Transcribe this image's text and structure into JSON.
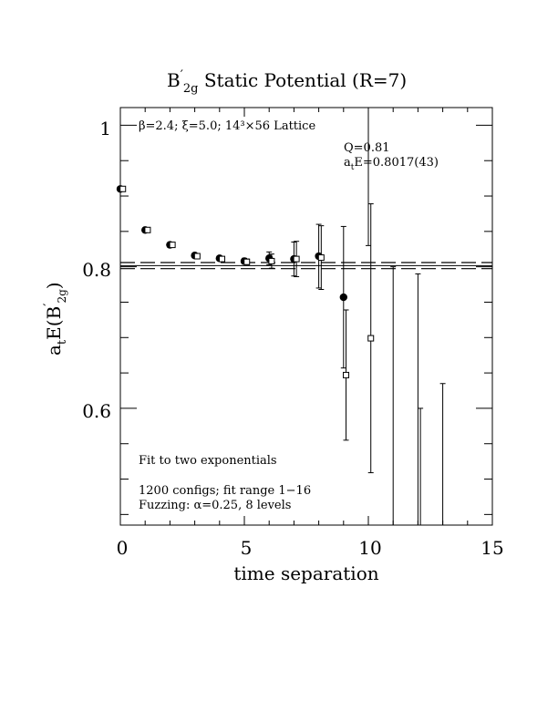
{
  "chart_data": {
    "type": "scatter",
    "title_main": "B",
    "title_prime": "′",
    "title_sub": "2g",
    "title_rest": " Static Potential (R=7)",
    "xlabel": "time separation",
    "ylabel_main": "a",
    "ylabel_sub": "t",
    "ylabel_mid": "E(B",
    "ylabel_prime": "′",
    "ylabel_sub2": "2g",
    "ylabel_end": ")",
    "xlim": [
      0,
      15
    ],
    "ylim": [
      0.435,
      1.025
    ],
    "xticks": [
      0,
      5,
      10,
      15
    ],
    "xtick_labels": [
      "0",
      "5",
      "10",
      "15"
    ],
    "yticks": [
      0.6,
      0.8,
      1.0
    ],
    "ytick_labels": [
      "0.6",
      "0.8",
      "1"
    ],
    "annotations": {
      "lattice_beta": "β=2.4;",
      "lattice_xi": "ξ=5.0;",
      "lattice_size": "14³×56 Lattice",
      "q_value": "Q=0.81",
      "energy_a": "a",
      "energy_t": "t",
      "energy_rest": "E=0.8017(43)",
      "fit_label": "Fit to two exponentials",
      "configs": "1200 configs; fit range 1−16",
      "fuzzing": "Fuzzing: α=0.25, 8 levels"
    },
    "fit": {
      "value": 0.8017,
      "error": 0.0043
    },
    "series": [
      {
        "marker": "filled-circle",
        "points": [
          {
            "x": 0,
            "y": 0.91,
            "err": 0.002
          },
          {
            "x": 1,
            "y": 0.852,
            "err": 0.002
          },
          {
            "x": 2,
            "y": 0.831,
            "err": 0.002
          },
          {
            "x": 3,
            "y": 0.816,
            "err": 0.003
          },
          {
            "x": 4,
            "y": 0.812,
            "err": 0.003
          },
          {
            "x": 5,
            "y": 0.808,
            "err": 0.004
          },
          {
            "x": 6,
            "y": 0.812,
            "err": 0.009
          },
          {
            "x": 7,
            "y": 0.811,
            "err": 0.024
          },
          {
            "x": 8,
            "y": 0.815,
            "err": 0.045
          },
          {
            "x": 9,
            "y": 0.757,
            "err": 0.1
          }
        ]
      },
      {
        "marker": "open-square",
        "points": [
          {
            "x": 0.1,
            "y": 0.91,
            "err": 0.002
          },
          {
            "x": 1.1,
            "y": 0.852,
            "err": 0.002
          },
          {
            "x": 2.1,
            "y": 0.831,
            "err": 0.002
          },
          {
            "x": 3.1,
            "y": 0.815,
            "err": 0.003
          },
          {
            "x": 4.1,
            "y": 0.811,
            "err": 0.003
          },
          {
            "x": 5.1,
            "y": 0.807,
            "err": 0.004
          },
          {
            "x": 6.1,
            "y": 0.808,
            "err": 0.01
          },
          {
            "x": 7.1,
            "y": 0.811,
            "err": 0.025
          },
          {
            "x": 8.1,
            "y": 0.813,
            "err": 0.045
          },
          {
            "x": 9.1,
            "y": 0.647,
            "err": 0.092
          },
          {
            "x": 10.1,
            "y": 0.699,
            "err": 0.19
          }
        ]
      },
      {
        "marker": "none",
        "points": [
          {
            "x": 10.0,
            "y": 1.02,
            "err": 0.19
          },
          {
            "x": 11.0,
            "y": 0.58,
            "err": 0.22
          },
          {
            "x": 12.0,
            "y": 0.58,
            "err": 0.21
          },
          {
            "x": 12.1,
            "y": 0.45,
            "err": 0.15
          },
          {
            "x": 13.0,
            "y": 0.48,
            "err": 0.155
          }
        ]
      }
    ]
  }
}
